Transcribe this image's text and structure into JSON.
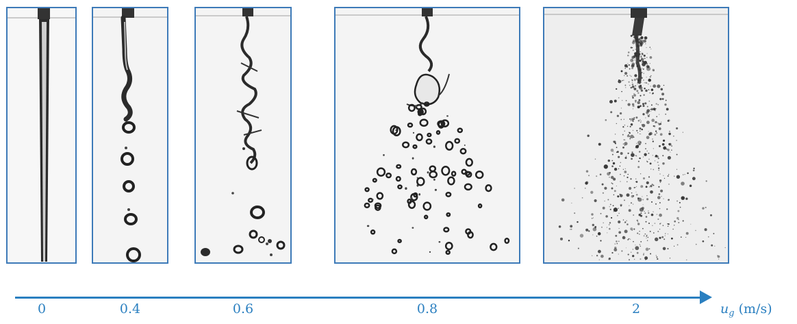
{
  "panels": [
    {
      "name": "jet-panel-0",
      "description_value": "0"
    },
    {
      "name": "jet-panel-0.4",
      "description_value": "0.4"
    },
    {
      "name": "jet-panel-0.6",
      "description_value": "0.6"
    },
    {
      "name": "jet-panel-0.8",
      "description_value": "0.8"
    },
    {
      "name": "jet-panel-2",
      "description_value": "2"
    }
  ],
  "axis": {
    "ticks": [
      "0",
      "0.4",
      "0.6",
      "0.8",
      "2"
    ],
    "label_var": "u",
    "label_sub": "g",
    "label_unit": "(m/s)",
    "color": "#2a7fc0"
  }
}
